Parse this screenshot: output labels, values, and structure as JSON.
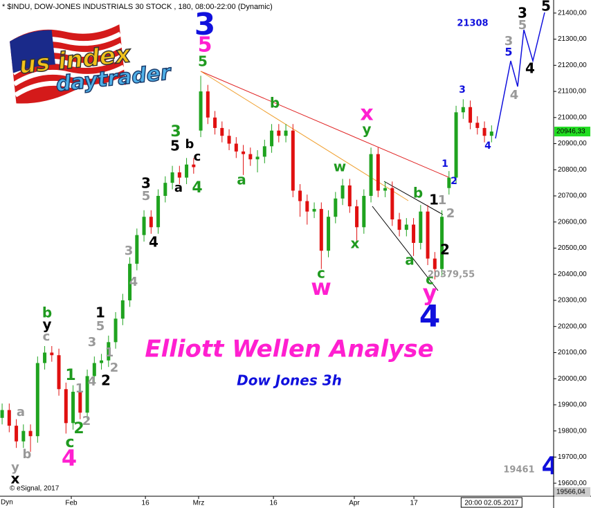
{
  "header": "* $INDU, DOW-JONES INDUSTRIALS 30 STOCK , 180, 08:00-22:00 (Dynamic)",
  "logo": {
    "line1": "us index",
    "line2": "daytrader"
  },
  "chart_data": {
    "type": "candlestick",
    "title": "Elliott Wellen Analyse",
    "subtitle": "Dow Jones 3h",
    "source": "© eSignal, 2017",
    "x_axis_mode": "Dyn",
    "up_color": "#1fa31f",
    "down_color": "#e01010",
    "x": [
      0,
      1,
      2,
      3,
      4,
      5,
      6,
      7,
      8,
      9,
      10,
      11,
      12,
      13,
      14,
      15,
      16,
      17,
      18,
      19,
      20,
      21,
      22,
      23,
      24,
      25,
      26,
      27,
      28,
      29,
      30,
      31,
      32,
      33,
      34,
      35,
      36,
      37,
      38,
      39,
      40,
      41,
      42,
      43,
      44,
      45,
      46,
      47,
      48,
      49,
      50,
      51,
      52,
      53,
      54,
      55,
      56,
      57,
      58,
      59,
      60,
      61,
      62,
      63,
      64,
      65,
      66,
      67,
      68,
      69
    ],
    "open": [
      19850,
      19880,
      19820,
      19760,
      19800,
      19780,
      20060,
      20100,
      20090,
      19960,
      19830,
      19950,
      19870,
      20010,
      20060,
      20070,
      20140,
      20230,
      20300,
      20440,
      20550,
      20620,
      20580,
      20700,
      20750,
      20790,
      20770,
      20820,
      20950,
      21100,
      21000,
      20960,
      20930,
      20900,
      20870,
      20860,
      20840,
      20850,
      20890,
      20950,
      20930,
      20950,
      20720,
      20680,
      20640,
      20650,
      20490,
      20620,
      20690,
      20740,
      20660,
      20580,
      20700,
      20860,
      20720,
      20730,
      20610,
      20570,
      20590,
      20520,
      20640,
      20460,
      20420,
      20730,
      20770,
      21020,
      21040,
      20980,
      20960,
      20930
    ],
    "high": [
      19905,
      19905,
      19845,
      19825,
      19825,
      20085,
      20125,
      20125,
      20115,
      19985,
      19975,
      19975,
      20035,
      20085,
      20095,
      20165,
      20255,
      20325,
      20465,
      20575,
      20645,
      20645,
      20725,
      20775,
      20815,
      20815,
      20845,
      20845,
      21160,
      21125,
      21025,
      20985,
      20955,
      20925,
      20895,
      20885,
      20875,
      20915,
      20975,
      20975,
      20975,
      20975,
      20745,
      20705,
      20675,
      20675,
      20645,
      20715,
      20765,
      20765,
      20685,
      20725,
      20885,
      20885,
      20755,
      20755,
      20635,
      20615,
      20615,
      20665,
      20665,
      20485,
      20645,
      20795,
      21045,
      21070,
      21065,
      21005,
      20985,
      20970
    ],
    "low": [
      19825,
      19795,
      19735,
      19735,
      19720,
      19755,
      20035,
      20065,
      19935,
      19790,
      19805,
      19845,
      19845,
      19985,
      20035,
      20045,
      20115,
      20205,
      20275,
      20415,
      20525,
      20555,
      20555,
      20675,
      20725,
      20745,
      20745,
      20785,
      20925,
      20975,
      20935,
      20905,
      20875,
      20845,
      20780,
      20815,
      20790,
      20825,
      20865,
      20905,
      20905,
      20695,
      20620,
      20590,
      20615,
      20420,
      20465,
      20595,
      20665,
      20635,
      20525,
      20555,
      20675,
      20695,
      20695,
      20585,
      20545,
      20545,
      20470,
      20495,
      20435,
      20380,
      20395,
      20705,
      20745,
      20995,
      20955,
      20935,
      20905,
      20905
    ],
    "close": [
      19880,
      19820,
      19760,
      19800,
      19780,
      20060,
      20100,
      20090,
      19960,
      19830,
      19950,
      19870,
      20010,
      20060,
      20070,
      20140,
      20230,
      20300,
      20440,
      20550,
      20620,
      20580,
      20700,
      20750,
      20790,
      20770,
      20820,
      20810,
      21100,
      21000,
      20960,
      20930,
      20900,
      20870,
      20860,
      20840,
      20850,
      20890,
      20950,
      20930,
      20950,
      20720,
      20680,
      20640,
      20650,
      20490,
      20620,
      20690,
      20740,
      20660,
      20580,
      20700,
      20860,
      20720,
      20730,
      20610,
      20570,
      20590,
      20520,
      20640,
      20460,
      20420,
      20620,
      20770,
      21020,
      21040,
      20980,
      20960,
      20930,
      20946.33
    ],
    "xlim": [
      -0.3,
      77.75
    ],
    "xticks": [
      {
        "value": 9.75,
        "label": "Feb"
      },
      {
        "value": 20.2,
        "label": "16"
      },
      {
        "value": 27.7,
        "label": "Mrz"
      },
      {
        "value": 38.25,
        "label": "16"
      },
      {
        "value": 49.65,
        "label": "Apr"
      },
      {
        "value": 58.05,
        "label": "17"
      }
    ],
    "cursor_time": {
      "value": 69,
      "label": "20:00 02.05.2017"
    },
    "ylim": [
      19550,
      21450
    ],
    "yticks": [
      {
        "value": 19600,
        "label": "19600,00"
      },
      {
        "value": 19700,
        "label": "19700,00"
      },
      {
        "value": 19800,
        "label": "19800,00"
      },
      {
        "value": 19900,
        "label": "19900,00"
      },
      {
        "value": 20000,
        "label": "20000,00"
      },
      {
        "value": 20100,
        "label": "20100,00"
      },
      {
        "value": 20200,
        "label": "20200,00"
      },
      {
        "value": 20300,
        "label": "20300,00"
      },
      {
        "value": 20400,
        "label": "20400,00"
      },
      {
        "value": 20500,
        "label": "20500,00"
      },
      {
        "value": 20600,
        "label": "20600,00"
      },
      {
        "value": 20700,
        "label": "20700,00"
      },
      {
        "value": 20800,
        "label": "20800,00"
      },
      {
        "value": 20900,
        "label": "20900,00"
      },
      {
        "value": 21000,
        "label": "21000,00"
      },
      {
        "value": 21100,
        "label": "21100,00"
      },
      {
        "value": 21200,
        "label": "21200,00"
      },
      {
        "value": 21300,
        "label": "21300,00"
      },
      {
        "value": 21400,
        "label": "21400,00"
      }
    ],
    "last_price": {
      "value": 20946.33,
      "label": "20946,33",
      "color": "#22dd22"
    },
    "bottom_price": {
      "value": 19566.04,
      "label": "19566,04",
      "color": "#cccccc"
    },
    "annotations": [
      {
        "text": "3",
        "color": "#1010dd"
      },
      {
        "text": "5",
        "color": "#ff1fd0"
      },
      {
        "text": "5",
        "color": "#1f9a1f"
      },
      {
        "text": "x",
        "color": "#ff1fd0"
      },
      {
        "text": "y",
        "color": "#1f9a1f"
      },
      {
        "text": "b",
        "color": "#1f9a1f"
      },
      {
        "text": "w",
        "color": "#1f9a1f"
      },
      {
        "text": "a",
        "color": "#1f9a1f"
      },
      {
        "text": "c",
        "color": "#1f9a1f"
      },
      {
        "text": "w",
        "color": "#ff1fd0"
      },
      {
        "text": "x",
        "color": "#1f9a1f"
      },
      {
        "text": "b",
        "color": "#1f9a1f"
      },
      {
        "text": "1",
        "color": "#000000"
      },
      {
        "text": "1",
        "color": "#999999"
      },
      {
        "text": "2",
        "color": "#999999"
      },
      {
        "text": "2",
        "color": "#000000"
      },
      {
        "text": "a",
        "color": "#1f9a1f"
      },
      {
        "text": "c",
        "color": "#1f9a1f"
      },
      {
        "text": "y",
        "color": "#ff1fd0"
      },
      {
        "text": "4",
        "color": "#1010dd"
      },
      {
        "text": "3",
        "color": "#1010dd"
      },
      {
        "text": "4",
        "color": "#1010dd"
      },
      {
        "text": "1",
        "color": "#1010dd"
      },
      {
        "text": "2",
        "color": "#1010dd"
      },
      {
        "text": "3",
        "color": "#000000"
      },
      {
        "text": "5",
        "color": "#999999"
      },
      {
        "text": "5",
        "color": "#000000"
      },
      {
        "text": "3",
        "color": "#999999"
      },
      {
        "text": "5",
        "color": "#1010dd"
      },
      {
        "text": "4",
        "color": "#000000"
      },
      {
        "text": "4",
        "color": "#999999"
      },
      {
        "text": "4",
        "color": "#1010dd"
      },
      {
        "text": "3",
        "color": "#1f9a1f"
      },
      {
        "text": "5",
        "color": "#000000"
      },
      {
        "text": "b",
        "color": "#000000"
      },
      {
        "text": "c",
        "color": "#000000"
      },
      {
        "text": "4",
        "color": "#1f9a1f"
      },
      {
        "text": "a",
        "color": "#000000"
      },
      {
        "text": "3",
        "color": "#000000"
      },
      {
        "text": "5",
        "color": "#999999"
      },
      {
        "text": "4",
        "color": "#000000"
      },
      {
        "text": "3",
        "color": "#999999"
      },
      {
        "text": "4",
        "color": "#999999"
      },
      {
        "text": "1",
        "color": "#000000"
      },
      {
        "text": "5",
        "color": "#999999"
      },
      {
        "text": "3",
        "color": "#999999"
      },
      {
        "text": "1",
        "color": "#999999"
      },
      {
        "text": "2",
        "color": "#999999"
      },
      {
        "text": "2",
        "color": "#000000"
      },
      {
        "text": "4",
        "color": "#999999"
      },
      {
        "text": "1",
        "color": "#1f9a1f"
      },
      {
        "text": "1",
        "color": "#999999"
      },
      {
        "text": "2",
        "color": "#999999"
      },
      {
        "text": "2",
        "color": "#1f9a1f"
      },
      {
        "text": "c",
        "color": "#1f9a1f"
      },
      {
        "text": "4",
        "color": "#ff1fd0"
      },
      {
        "text": "b",
        "color": "#1f9a1f"
      },
      {
        "text": "y",
        "color": "#000000"
      },
      {
        "text": "c",
        "color": "#999999"
      },
      {
        "text": "a",
        "color": "#999999"
      },
      {
        "text": "b",
        "color": "#999999"
      },
      {
        "text": "y",
        "color": "#999999"
      },
      {
        "text": "x",
        "color": "#000000"
      },
      {
        "text": "20379,55",
        "color": "#999999"
      },
      {
        "text": "21308",
        "color": "#1010dd"
      },
      {
        "text": "19461",
        "color": "#999999"
      }
    ]
  }
}
